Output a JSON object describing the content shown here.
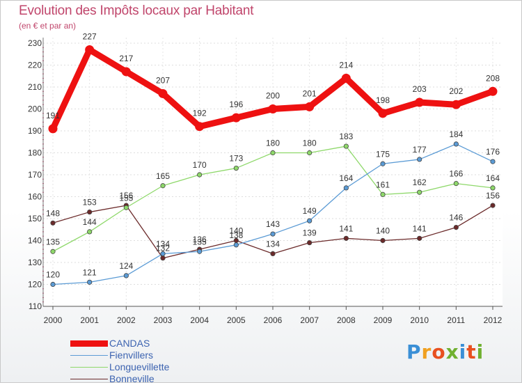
{
  "title": "Evolution des Impôts locaux par Habitant",
  "subtitle": "(en € et par an)",
  "logo": [
    "P",
    "r",
    "o",
    "x",
    "i",
    "t",
    "i"
  ],
  "logo_colors": [
    "#3a8fd6",
    "#f0a020",
    "#e85020",
    "#70b030",
    "#3a8fd6",
    "#e85020",
    "#70b030"
  ],
  "chart_data": {
    "type": "line",
    "title": "Evolution des Impôts locaux par Habitant",
    "subtitle": "(en € et par an)",
    "xlabel": "",
    "ylabel": "",
    "x": [
      "2000",
      "2001",
      "2002",
      "2003",
      "2004",
      "2005",
      "2006",
      "2007",
      "2008",
      "2009",
      "2010",
      "2011",
      "2012"
    ],
    "ylim": [
      110,
      230
    ],
    "yticks": [
      "110",
      "120",
      "130",
      "140",
      "150",
      "160",
      "170",
      "180",
      "190",
      "200",
      "210",
      "220",
      "230"
    ],
    "grid": true,
    "legend_position": "bottom-left",
    "series": [
      {
        "name": "CANDAS",
        "color": "#ee1111",
        "emphasis": true,
        "values": [
          191,
          227,
          217,
          207,
          192,
          196,
          200,
          201,
          214,
          198,
          203,
          202,
          208
        ],
        "labels": [
          "191",
          "227",
          "217",
          "207",
          "192",
          "196",
          "200",
          "201",
          "214",
          "198",
          "203",
          "202",
          "208"
        ]
      },
      {
        "name": "Fienvillers",
        "color": "#5b9bd5",
        "values": [
          120,
          121,
          124,
          134,
          135,
          138,
          143,
          149,
          164,
          175,
          177,
          184,
          176
        ],
        "labels": [
          "120",
          "121",
          "124",
          "134",
          "135",
          "138",
          "143",
          "149",
          "164",
          "175",
          "177",
          "184",
          "176"
        ]
      },
      {
        "name": "Longuevillette",
        "color": "#8ed86a",
        "values": [
          135,
          144,
          155,
          165,
          170,
          173,
          180,
          180,
          183,
          161,
          162,
          166,
          164
        ],
        "labels": [
          "135",
          "144",
          "155",
          "165",
          "170",
          "173",
          "180",
          "180",
          "183",
          "161",
          "162",
          "166",
          "164"
        ]
      },
      {
        "name": "Bonneville",
        "color": "#6b2a2a",
        "values": [
          148,
          153,
          156,
          132,
          136,
          140,
          134,
          139,
          141,
          140,
          141,
          146,
          156
        ],
        "labels": [
          "148",
          "153",
          "156",
          "132",
          "136",
          "140",
          "134",
          "139",
          "141",
          "140",
          "141",
          "146",
          "156"
        ]
      }
    ]
  }
}
